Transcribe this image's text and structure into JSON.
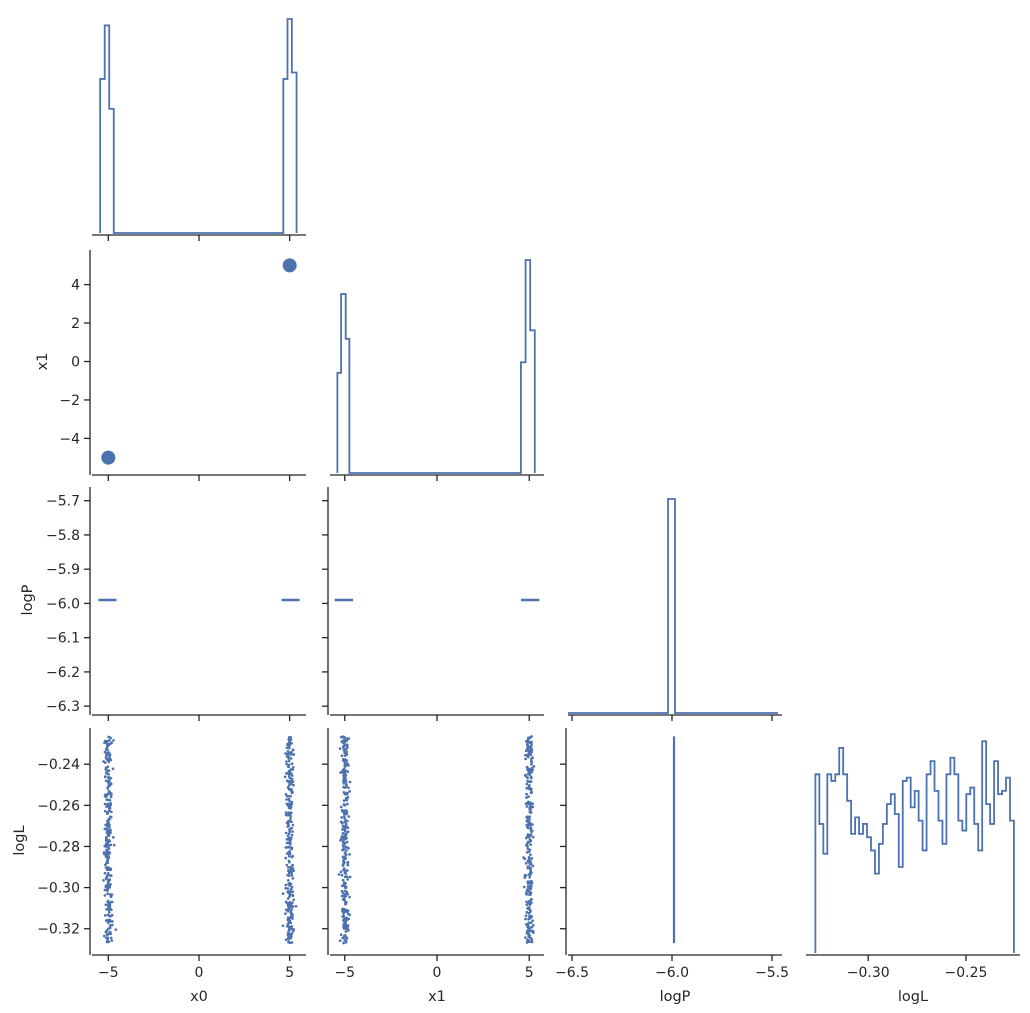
{
  "chart_data": {
    "type": "corner",
    "variables": [
      "x0",
      "x1",
      "logP",
      "logL"
    ],
    "color": "#4c72b0",
    "axis_color": "#262626",
    "grid": false,
    "ranges": {
      "x0": [
        -5.9,
        5.9
      ],
      "x1": [
        -5.8,
        5.8
      ],
      "logP": [
        -6.32,
        -5.66
      ],
      "logL": [
        -0.3318,
        -0.2224
      ]
    },
    "ticks": {
      "x0": {
        "values": [
          -5,
          0,
          5
        ],
        "labels": [
          "−5",
          "0",
          "5"
        ]
      },
      "x1_x": {
        "values": [
          -5,
          0,
          5
        ],
        "labels": [
          "−5",
          "0",
          "5"
        ]
      },
      "x1_y": {
        "values": [
          -4,
          -2,
          0,
          2,
          4
        ],
        "labels": [
          "−4",
          "−2",
          "0",
          "2",
          "4"
        ]
      },
      "logP_x": {
        "values": [
          -6.5,
          -6.0,
          -5.5
        ],
        "labels": [
          "−6.5",
          "−6.0",
          "−5.5"
        ]
      },
      "logP_y": {
        "values": [
          -5.7,
          -5.8,
          -5.9,
          -6.0,
          -6.1,
          -6.2,
          -6.3
        ],
        "labels": [
          "−5.7",
          "−5.8",
          "−5.9",
          "−6.0",
          "−6.1",
          "−6.2",
          "−6.3"
        ]
      },
      "logL_y": {
        "values": [
          -0.24,
          -0.26,
          -0.28,
          -0.3,
          -0.32
        ],
        "labels": [
          "−0.24",
          "−0.26",
          "−0.28",
          "−0.30",
          "−0.32"
        ]
      },
      "logL_x": {
        "values": [
          -0.3,
          -0.25
        ],
        "labels": [
          "−0.30",
          "−0.25"
        ]
      }
    },
    "axis_labels": {
      "x_bottom": [
        "x0",
        "x1",
        "logP",
        "logL"
      ],
      "y_left": [
        "",
        "x1",
        "logP",
        "logL"
      ]
    },
    "hist_x0": {
      "bins": [
        -5.45,
        -5.2,
        -5.0,
        -4.8,
        -4.6,
        4.7,
        4.9,
        5.1,
        5.3,
        5.55
      ],
      "counts": [
        0.72,
        0.97,
        0.58,
        0,
        0,
        0,
        0.72,
        1.0,
        0.75,
        0
      ]
    },
    "hist_x1": {
      "bins": [
        -5.4,
        -5.15,
        -4.95,
        -4.75,
        -4.55,
        4.6,
        4.8,
        5.0,
        5.2,
        5.45
      ],
      "counts": [
        0.62,
        0.8,
        0.6,
        0,
        0,
        0,
        0.55,
        1.0,
        0.73,
        0
      ],
      "log_shaped": true
    },
    "hist_logP": {
      "bins": [
        -6.02,
        -5.98
      ],
      "counts": [
        1.0
      ],
      "ylim": [
        -0.01,
        1.04
      ],
      "xlim": [
        -6.52,
        -5.45
      ]
    },
    "hist_logL": {
      "bins": [
        -0.327,
        -0.2255
      ],
      "counts": [
        0.54,
        0.39,
        0.3,
        0.54,
        0.52,
        0.54,
        0.62,
        0.54,
        0.46,
        0.36,
        0.41,
        0.36,
        0.39,
        0.35,
        0.31,
        0.24,
        0.33,
        0.39,
        0.45,
        0.48,
        0.42,
        0.26,
        0.52,
        0.53,
        0.44,
        0.49,
        0.4,
        0.31,
        0.54,
        0.58,
        0.49,
        0.4,
        0.33,
        0.54,
        0.59,
        0.54,
        0.4,
        0.37,
        0.48,
        0.5,
        0.39,
        0.31,
        0.64,
        0.45,
        0.39,
        0.58,
        0.48,
        0.49,
        0.53,
        0.4
      ],
      "ymax": 0.68
    },
    "scatter_x0_x1": [
      {
        "x": -5.0,
        "y": -5.0
      },
      {
        "x": 5.0,
        "y": 5.0
      }
    ],
    "logP_value": -5.99,
    "logL_range": [
      -0.327,
      -0.2265
    ],
    "clusters": [
      -5.0,
      5.0
    ],
    "cluster_spread": 0.18,
    "n_samples_per_cluster": 280
  }
}
